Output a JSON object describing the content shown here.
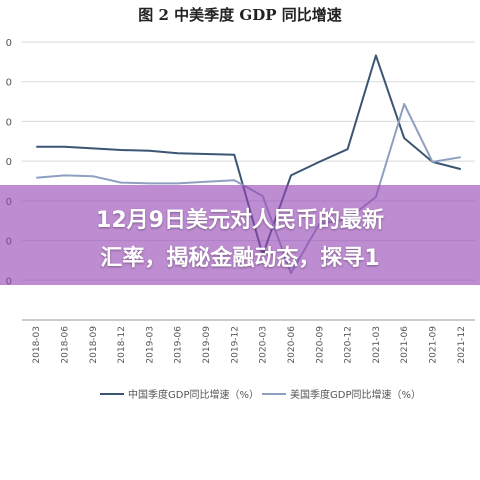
{
  "chart_data": {
    "type": "line",
    "title": "图 2  中美季度 GDP 同比增速",
    "categories": [
      "2018-03",
      "2018-06",
      "2018-09",
      "2018-12",
      "2019-03",
      "2019-06",
      "2019-09",
      "2019-12",
      "2020-03",
      "2020-06",
      "2020-09",
      "2020-12",
      "2021-03",
      "2021-06",
      "2021-09",
      "2021-12"
    ],
    "y_tick_labels": [
      "0",
      "0",
      "0",
      "0",
      "0",
      "0",
      "0",
      "0"
    ],
    "ylim": [
      -15,
      20
    ],
    "grid": true,
    "legend_position": "bottom",
    "series": [
      {
        "name": "中国季度GDP同比增速（%）",
        "color": "#3b5573",
        "values": [
          6.8,
          6.8,
          6.6,
          6.4,
          6.3,
          6.0,
          5.9,
          5.8,
          -6.8,
          3.2,
          4.9,
          6.5,
          18.3,
          7.9,
          4.9,
          4.0
        ]
      },
      {
        "name": "美国季度GDP同比增速（%）",
        "color": "#8ea0c0",
        "values": [
          2.9,
          3.2,
          3.1,
          2.3,
          2.2,
          2.2,
          2.4,
          2.6,
          0.6,
          -9.1,
          -2.9,
          -2.3,
          0.5,
          12.2,
          4.9,
          5.5
        ]
      }
    ]
  },
  "overlay": {
    "line1": "12月9日美元对人民币的最新",
    "line2": "汇率，揭秘金融动态，探寻1"
  }
}
